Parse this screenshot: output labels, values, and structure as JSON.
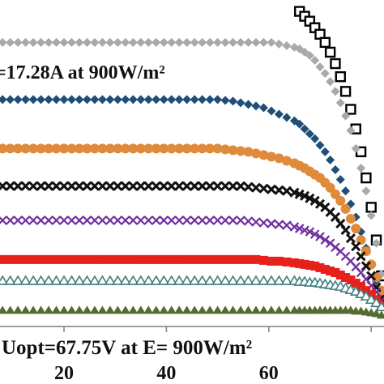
{
  "chart_data": {
    "type": "scatter",
    "title": "",
    "xlabel": "",
    "ylabel": "",
    "xlim": [
      7.5,
      82.5
    ],
    "ylim": [
      0,
      19.6
    ],
    "xticks": [
      20,
      40,
      60
    ],
    "grid": false,
    "annotations": {
      "current": "=17.28A at 900W/m²",
      "voltage": "Uopt=67.75V at E= 900W/m²"
    },
    "x": [
      8,
      9.5,
      11,
      12.5,
      14,
      15.5,
      17,
      18.5,
      20,
      21.5,
      23,
      24.5,
      26,
      27.5,
      29,
      30.5,
      32,
      33.5,
      35,
      36.5,
      38,
      39.5,
      41,
      42.5,
      44,
      45.5,
      47,
      48.5,
      50,
      51.5,
      53,
      54.5,
      56,
      57.5,
      59,
      60.5,
      62,
      63.5,
      65,
      66,
      67,
      68,
      69,
      70,
      71,
      72,
      73,
      74,
      75,
      76,
      77,
      78,
      79,
      80,
      81,
      82
    ],
    "series": [
      {
        "marker": "square-open",
        "color": "#000000",
        "values": [
          null,
          null,
          null,
          null,
          null,
          null,
          null,
          null,
          null,
          null,
          null,
          null,
          null,
          null,
          null,
          null,
          null,
          null,
          null,
          null,
          null,
          null,
          null,
          null,
          null,
          null,
          null,
          null,
          null,
          null,
          null,
          null,
          null,
          null,
          null,
          null,
          null,
          null,
          null,
          19.3,
          19.0,
          18.7,
          18.3,
          17.9,
          17.4,
          16.8,
          16.1,
          15.3,
          14.4,
          13.3,
          12.1,
          10.7,
          9.1,
          7.3,
          5.3,
          3.1
        ]
      },
      {
        "marker": "diamond",
        "color": "#a9a9a9",
        "values": [
          17.4,
          17.4,
          17.4,
          17.4,
          17.4,
          17.4,
          17.4,
          17.4,
          17.4,
          17.4,
          17.4,
          17.4,
          17.4,
          17.4,
          17.4,
          17.4,
          17.4,
          17.4,
          17.4,
          17.4,
          17.4,
          17.4,
          17.4,
          17.4,
          17.4,
          17.4,
          17.4,
          17.4,
          17.4,
          17.4,
          17.4,
          17.4,
          17.4,
          17.4,
          17.4,
          17.4,
          17.3,
          17.2,
          17.1,
          17.0,
          16.8,
          16.6,
          16.3,
          15.9,
          15.5,
          15.0,
          14.4,
          13.7,
          12.9,
          12.0,
          10.9,
          9.7,
          8.3,
          6.8,
          5.1,
          3.2
        ]
      },
      {
        "marker": "diamond",
        "color": "#1f4e79",
        "values": [
          13.9,
          13.9,
          13.9,
          13.9,
          13.9,
          13.9,
          13.9,
          13.9,
          13.9,
          13.9,
          13.9,
          13.9,
          13.9,
          13.9,
          13.9,
          13.9,
          13.9,
          13.9,
          13.9,
          13.9,
          13.9,
          13.9,
          13.9,
          13.9,
          13.9,
          13.9,
          13.9,
          13.9,
          13.9,
          13.85,
          13.8,
          13.7,
          13.6,
          13.5,
          13.4,
          13.2,
          13.0,
          12.8,
          12.6,
          12.4,
          12.1,
          11.8,
          11.5,
          11.1,
          10.7,
          10.2,
          9.6,
          9.0,
          8.3,
          7.5,
          6.7,
          5.8,
          4.8,
          3.8,
          2.8,
          1.8
        ]
      },
      {
        "marker": "circle",
        "color": "#e08a3c",
        "values": [
          10.9,
          10.9,
          10.9,
          10.9,
          10.9,
          10.9,
          10.9,
          10.9,
          10.9,
          10.9,
          10.9,
          10.9,
          10.9,
          10.9,
          10.9,
          10.9,
          10.9,
          10.9,
          10.9,
          10.9,
          10.9,
          10.9,
          10.9,
          10.9,
          10.9,
          10.9,
          10.9,
          10.9,
          10.9,
          10.85,
          10.8,
          10.75,
          10.7,
          10.6,
          10.5,
          10.4,
          10.3,
          10.15,
          10.0,
          9.85,
          9.7,
          9.5,
          9.3,
          9.1,
          8.8,
          8.5,
          8.1,
          7.7,
          7.2,
          6.6,
          6.0,
          5.3,
          4.6,
          3.8,
          3.0,
          2.2
        ]
      },
      {
        "marker": "x-bold",
        "color": "#111111",
        "values": [
          8.6,
          8.6,
          8.6,
          8.6,
          8.6,
          8.6,
          8.6,
          8.6,
          8.6,
          8.6,
          8.6,
          8.6,
          8.6,
          8.6,
          8.6,
          8.6,
          8.6,
          8.6,
          8.6,
          8.6,
          8.6,
          8.6,
          8.6,
          8.6,
          8.6,
          8.6,
          8.6,
          8.6,
          8.6,
          8.6,
          8.6,
          8.6,
          8.55,
          8.5,
          8.45,
          8.4,
          8.35,
          8.3,
          8.2,
          8.1,
          8.0,
          7.85,
          7.7,
          7.5,
          7.3,
          7.0,
          6.7,
          6.3,
          5.9,
          5.4,
          4.9,
          4.3,
          3.7,
          3.1,
          2.4,
          1.7
        ]
      },
      {
        "marker": "x",
        "color": "#7030a0",
        "values": [
          6.5,
          6.5,
          6.5,
          6.5,
          6.5,
          6.5,
          6.5,
          6.5,
          6.5,
          6.5,
          6.5,
          6.5,
          6.5,
          6.5,
          6.5,
          6.5,
          6.5,
          6.5,
          6.5,
          6.5,
          6.5,
          6.5,
          6.5,
          6.5,
          6.5,
          6.5,
          6.5,
          6.5,
          6.5,
          6.5,
          6.5,
          6.5,
          6.45,
          6.4,
          6.35,
          6.3,
          6.25,
          6.2,
          6.1,
          6.0,
          5.9,
          5.8,
          5.65,
          5.5,
          5.3,
          5.1,
          4.85,
          4.6,
          4.3,
          4.0,
          3.65,
          3.3,
          2.9,
          2.5,
          2.1,
          1.6
        ]
      },
      {
        "marker": "square",
        "color": "#e8201c",
        "values": [
          4.1,
          4.1,
          4.1,
          4.1,
          4.1,
          4.1,
          4.1,
          4.1,
          4.1,
          4.1,
          4.1,
          4.1,
          4.1,
          4.1,
          4.1,
          4.1,
          4.1,
          4.1,
          4.1,
          4.1,
          4.1,
          4.1,
          4.1,
          4.1,
          4.1,
          4.1,
          4.1,
          4.1,
          4.1,
          4.1,
          4.1,
          4.1,
          4.1,
          4.1,
          4.05,
          4.0,
          4.0,
          3.95,
          3.9,
          3.85,
          3.8,
          3.75,
          3.7,
          3.6,
          3.5,
          3.4,
          3.3,
          3.15,
          3.0,
          2.85,
          2.65,
          2.45,
          2.2,
          1.95,
          1.65,
          1.3
        ]
      },
      {
        "marker": "triangle-open",
        "color": "#3f7f7f",
        "values": [
          2.8,
          2.8,
          2.8,
          2.8,
          2.8,
          2.8,
          2.8,
          2.8,
          2.8,
          2.8,
          2.8,
          2.8,
          2.8,
          2.8,
          2.8,
          2.8,
          2.8,
          2.8,
          2.8,
          2.8,
          2.8,
          2.8,
          2.8,
          2.8,
          2.8,
          2.8,
          2.8,
          2.8,
          2.8,
          2.8,
          2.8,
          2.8,
          2.8,
          2.8,
          2.8,
          2.8,
          2.8,
          2.8,
          2.8,
          2.75,
          2.75,
          2.7,
          2.7,
          2.65,
          2.6,
          2.55,
          2.5,
          2.45,
          2.35,
          2.25,
          2.15,
          2.0,
          1.85,
          1.65,
          1.45,
          1.2
        ]
      },
      {
        "marker": "triangle",
        "color": "#556b2f",
        "values": [
          1.0,
          1.0,
          1.0,
          1.0,
          1.0,
          1.0,
          1.0,
          1.0,
          1.0,
          1.0,
          1.0,
          1.0,
          1.0,
          1.0,
          1.0,
          1.0,
          1.0,
          1.0,
          1.0,
          1.0,
          1.0,
          1.0,
          1.0,
          1.0,
          1.0,
          1.0,
          1.0,
          1.0,
          1.0,
          1.0,
          1.0,
          1.0,
          1.0,
          1.0,
          1.0,
          1.0,
          1.0,
          1.0,
          1.0,
          1.0,
          1.0,
          1.0,
          1.0,
          1.0,
          1.0,
          1.0,
          1.0,
          1.0,
          1.0,
          1.0,
          0.95,
          0.95,
          0.9,
          0.85,
          0.8,
          0.7
        ]
      }
    ]
  }
}
